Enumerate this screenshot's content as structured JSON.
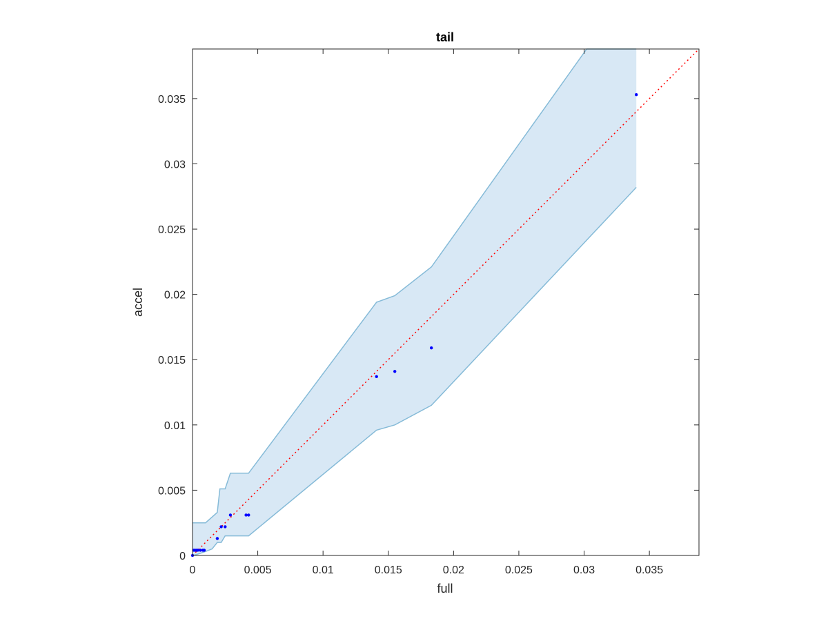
{
  "chart_data": {
    "type": "scatter",
    "title": "tail",
    "xlabel": "full",
    "ylabel": "accel",
    "xlim": [
      0,
      0.0388
    ],
    "ylim": [
      0,
      0.0388
    ],
    "xticks": [
      0,
      0.005,
      0.01,
      0.015,
      0.02,
      0.025,
      0.03,
      0.035
    ],
    "xtick_labels": [
      "0",
      "0.005",
      "0.01",
      "0.015",
      "0.02",
      "0.025",
      "0.03",
      "0.035"
    ],
    "yticks": [
      0,
      0.005,
      0.01,
      0.015,
      0.02,
      0.025,
      0.03,
      0.035
    ],
    "ytick_labels": [
      "0",
      "0.005",
      "0.01",
      "0.015",
      "0.02",
      "0.025",
      "0.03",
      "0.035"
    ],
    "grid": false,
    "points": [
      {
        "x": 0.0,
        "y": 0.0
      },
      {
        "x": 0.0001,
        "y": 0.0004
      },
      {
        "x": 0.0002,
        "y": 0.0004
      },
      {
        "x": 0.0003,
        "y": 0.0004
      },
      {
        "x": 0.0004,
        "y": 0.0004
      },
      {
        "x": 0.0006,
        "y": 0.0004
      },
      {
        "x": 0.0008,
        "y": 0.0004
      },
      {
        "x": 0.0009,
        "y": 0.0004
      },
      {
        "x": 0.0019,
        "y": 0.0013
      },
      {
        "x": 0.0022,
        "y": 0.0022
      },
      {
        "x": 0.0025,
        "y": 0.0022
      },
      {
        "x": 0.0029,
        "y": 0.0031
      },
      {
        "x": 0.0041,
        "y": 0.0031
      },
      {
        "x": 0.0043,
        "y": 0.0031
      },
      {
        "x": 0.0141,
        "y": 0.0137
      },
      {
        "x": 0.0155,
        "y": 0.0141
      },
      {
        "x": 0.0183,
        "y": 0.0159
      },
      {
        "x": 0.034,
        "y": 0.0353
      }
    ],
    "band_upper": [
      {
        "x": 0.0,
        "y": 0.0025
      },
      {
        "x": 0.001,
        "y": 0.0025
      },
      {
        "x": 0.0019,
        "y": 0.0033
      },
      {
        "x": 0.0021,
        "y": 0.0051
      },
      {
        "x": 0.0025,
        "y": 0.0051
      },
      {
        "x": 0.0029,
        "y": 0.0063
      },
      {
        "x": 0.0043,
        "y": 0.0063
      },
      {
        "x": 0.0141,
        "y": 0.0194
      },
      {
        "x": 0.0155,
        "y": 0.0199
      },
      {
        "x": 0.0183,
        "y": 0.0221
      },
      {
        "x": 0.0302,
        "y": 0.0388
      },
      {
        "x": 0.034,
        "y": 0.0388
      }
    ],
    "band_lower": [
      {
        "x": 0.034,
        "y": 0.0282
      },
      {
        "x": 0.0183,
        "y": 0.0115
      },
      {
        "x": 0.0155,
        "y": 0.01
      },
      {
        "x": 0.0141,
        "y": 0.0096
      },
      {
        "x": 0.0043,
        "y": 0.0015
      },
      {
        "x": 0.0025,
        "y": 0.0015
      },
      {
        "x": 0.0022,
        "y": 0.001
      },
      {
        "x": 0.0019,
        "y": 0.001
      },
      {
        "x": 0.0015,
        "y": 0.0005
      },
      {
        "x": 0.001,
        "y": 0.0003
      },
      {
        "x": 0.0004,
        "y": 0.0001
      },
      {
        "x": 0.0,
        "y": 0.0
      }
    ],
    "reference_line": {
      "x": [
        0,
        0.0388
      ],
      "y": [
        0,
        0.0388
      ]
    },
    "colors": {
      "band_fill": "#d8e8f5",
      "band_edge": "#86bbd8",
      "points": "#0000ff",
      "reference_line": "#ff0000",
      "axes": "#262626"
    }
  }
}
